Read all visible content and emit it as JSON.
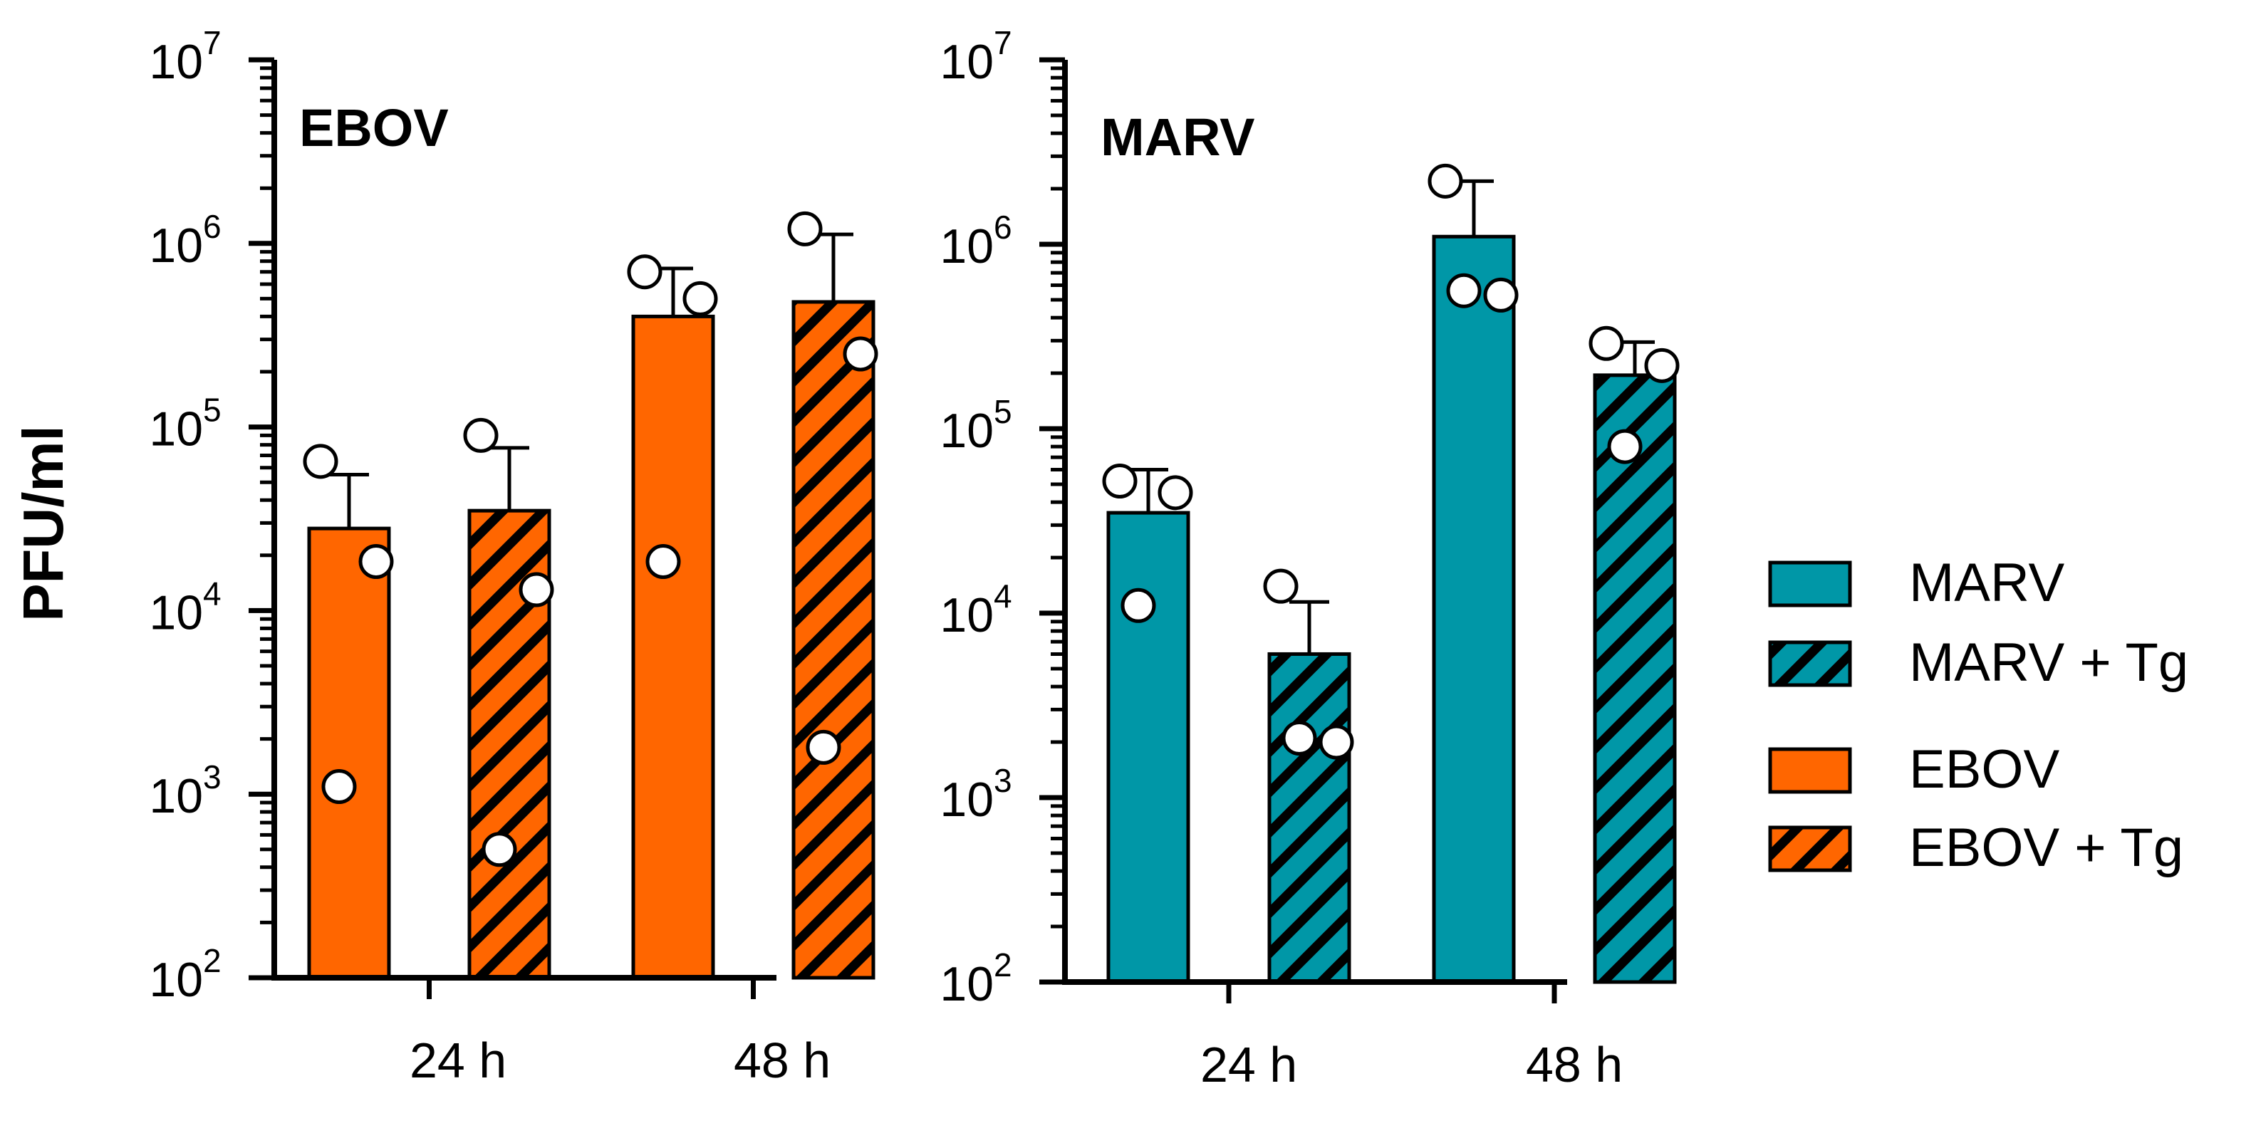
{
  "y_axis_label": "PFU/ml",
  "colors": {
    "EBOV": "#FF6600",
    "MARV": "#0097A7",
    "hatch": "#000000",
    "point_fill": "#FFFFFF",
    "outline": "#000000"
  },
  "legend": {
    "placement": "right",
    "items": [
      {
        "label": "MARV",
        "color": "#0097A7",
        "hatched": false
      },
      {
        "label": "MARV + Tg",
        "color": "#0097A7",
        "hatched": true
      },
      {
        "label": "EBOV",
        "color": "#FF6600",
        "hatched": false
      },
      {
        "label": "EBOV + Tg",
        "color": "#FF6600",
        "hatched": true
      }
    ]
  },
  "chart_data": [
    {
      "type": "bar",
      "title": "EBOV",
      "categories": [
        "24 h",
        "48 h"
      ],
      "y_scale": "log",
      "ylim": [
        100,
        10000000
      ],
      "y_ticks": [
        {
          "value": 100,
          "base": "10",
          "exp": "2"
        },
        {
          "value": 1000,
          "base": "10",
          "exp": "3"
        },
        {
          "value": 10000,
          "base": "10",
          "exp": "4"
        },
        {
          "value": 100000,
          "base": "10",
          "exp": "5"
        },
        {
          "value": 1000000,
          "base": "10",
          "exp": "6"
        },
        {
          "value": 10000000,
          "base": "10",
          "exp": "7"
        }
      ],
      "series": [
        {
          "name": "EBOV",
          "color": "#FF6600",
          "hatched": false,
          "values": [
            28000,
            400000
          ],
          "errors": [
            27000,
            330000
          ],
          "points": [
            [
              65000,
              18500,
              1100
            ],
            [
              700000,
              500000,
              18500
            ]
          ]
        },
        {
          "name": "EBOV + Tg",
          "color": "#FF6600",
          "hatched": true,
          "values": [
            35000,
            480000
          ],
          "errors": [
            42000,
            640000
          ],
          "points": [
            [
              90000,
              13000,
              500
            ],
            [
              1200000,
              250000,
              1800
            ]
          ]
        }
      ]
    },
    {
      "type": "bar",
      "title": "MARV",
      "categories": [
        "24 h",
        "48 h"
      ],
      "y_scale": "log",
      "ylim": [
        100,
        10000000
      ],
      "y_ticks": [
        {
          "value": 100,
          "base": "10",
          "exp": "2"
        },
        {
          "value": 1000,
          "base": "10",
          "exp": "3"
        },
        {
          "value": 10000,
          "base": "10",
          "exp": "4"
        },
        {
          "value": 100000,
          "base": "10",
          "exp": "5"
        },
        {
          "value": 1000000,
          "base": "10",
          "exp": "6"
        },
        {
          "value": 10000000,
          "base": "10",
          "exp": "7"
        }
      ],
      "series": [
        {
          "name": "MARV",
          "color": "#0097A7",
          "hatched": false,
          "values": [
            35000,
            1100000
          ],
          "errors": [
            25000,
            1100000
          ],
          "points": [
            [
              52000,
              45000,
              11000
            ],
            [
              2200000,
              530000,
              560000
            ]
          ]
        },
        {
          "name": "MARV + Tg",
          "color": "#0097A7",
          "hatched": true,
          "values": [
            6000,
            195000
          ],
          "errors": [
            5500,
            100000
          ],
          "points": [
            [
              14000,
              2000,
              2100
            ],
            [
              290000,
              220000,
              80000
            ]
          ]
        }
      ]
    }
  ]
}
